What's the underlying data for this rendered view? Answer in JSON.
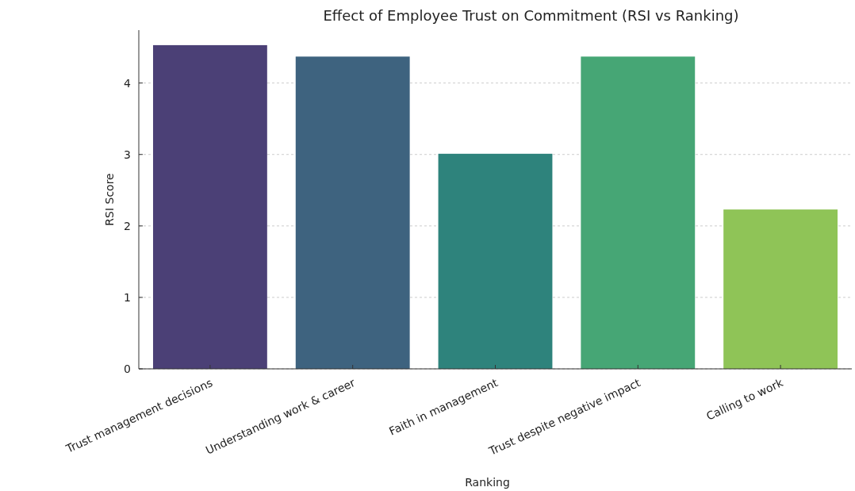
{
  "chart_data": {
    "type": "bar",
    "title": "Effect of Employee Trust on Commitment (RSI vs Ranking)",
    "xlabel": "Ranking",
    "ylabel": "RSI Score",
    "categories": [
      "Trust management decisions",
      "Understanding work & career",
      "Faith in management",
      "Trust despite negative impact",
      "Calling to work"
    ],
    "values": [
      4.53,
      4.37,
      3.01,
      4.37,
      2.23
    ],
    "colors": [
      "#4b4076",
      "#3e637f",
      "#2e837c",
      "#46a675",
      "#8fc457"
    ],
    "ylim": [
      0,
      4.74
    ],
    "yticks": [
      0,
      1,
      2,
      3,
      4
    ],
    "grid": "y"
  }
}
